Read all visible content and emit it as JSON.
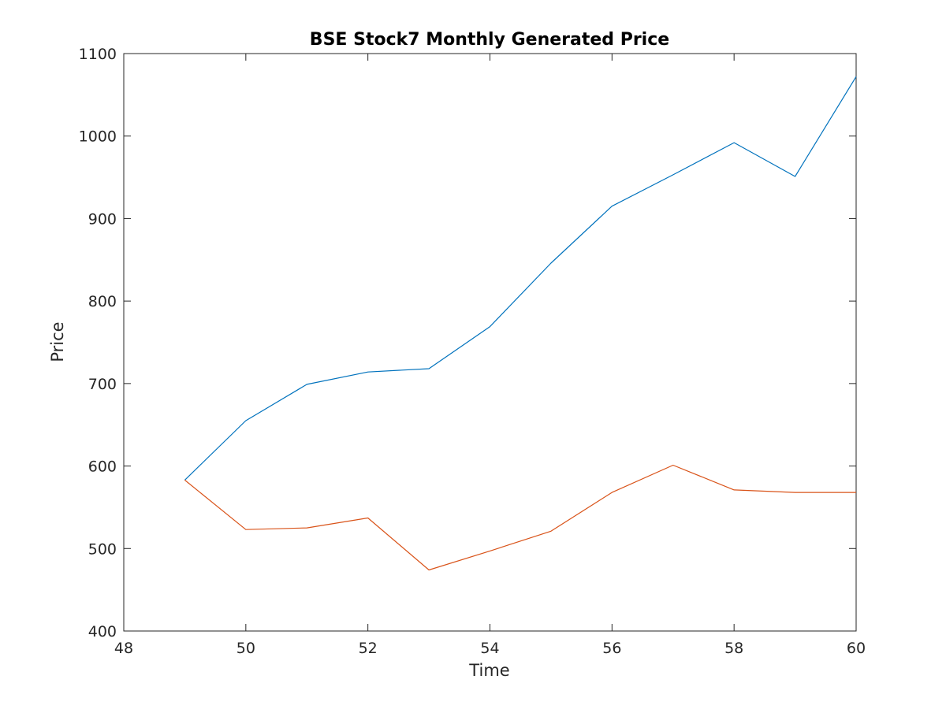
{
  "chart_data": {
    "type": "line",
    "title": "BSE Stock7 Monthly Generated Price",
    "xlabel": "Time",
    "ylabel": "Price",
    "xlim": [
      48,
      60
    ],
    "ylim": [
      400,
      1100
    ],
    "xticks": [
      48,
      50,
      52,
      54,
      56,
      58,
      60
    ],
    "yticks": [
      400,
      500,
      600,
      700,
      800,
      900,
      1000,
      1100
    ],
    "grid": false,
    "legend": "none",
    "x": [
      49,
      50,
      51,
      52,
      53,
      54,
      55,
      56,
      57,
      58,
      59,
      60
    ],
    "series": [
      {
        "color": "#0072BD",
        "values": [
          583,
          655,
          699,
          714,
          718,
          769,
          846,
          915,
          953,
          992,
          951,
          1072
        ]
      },
      {
        "color": "#D95319",
        "values": [
          583,
          523,
          525,
          537,
          474,
          497,
          521,
          568,
          601,
          571,
          568,
          568
        ]
      }
    ]
  }
}
